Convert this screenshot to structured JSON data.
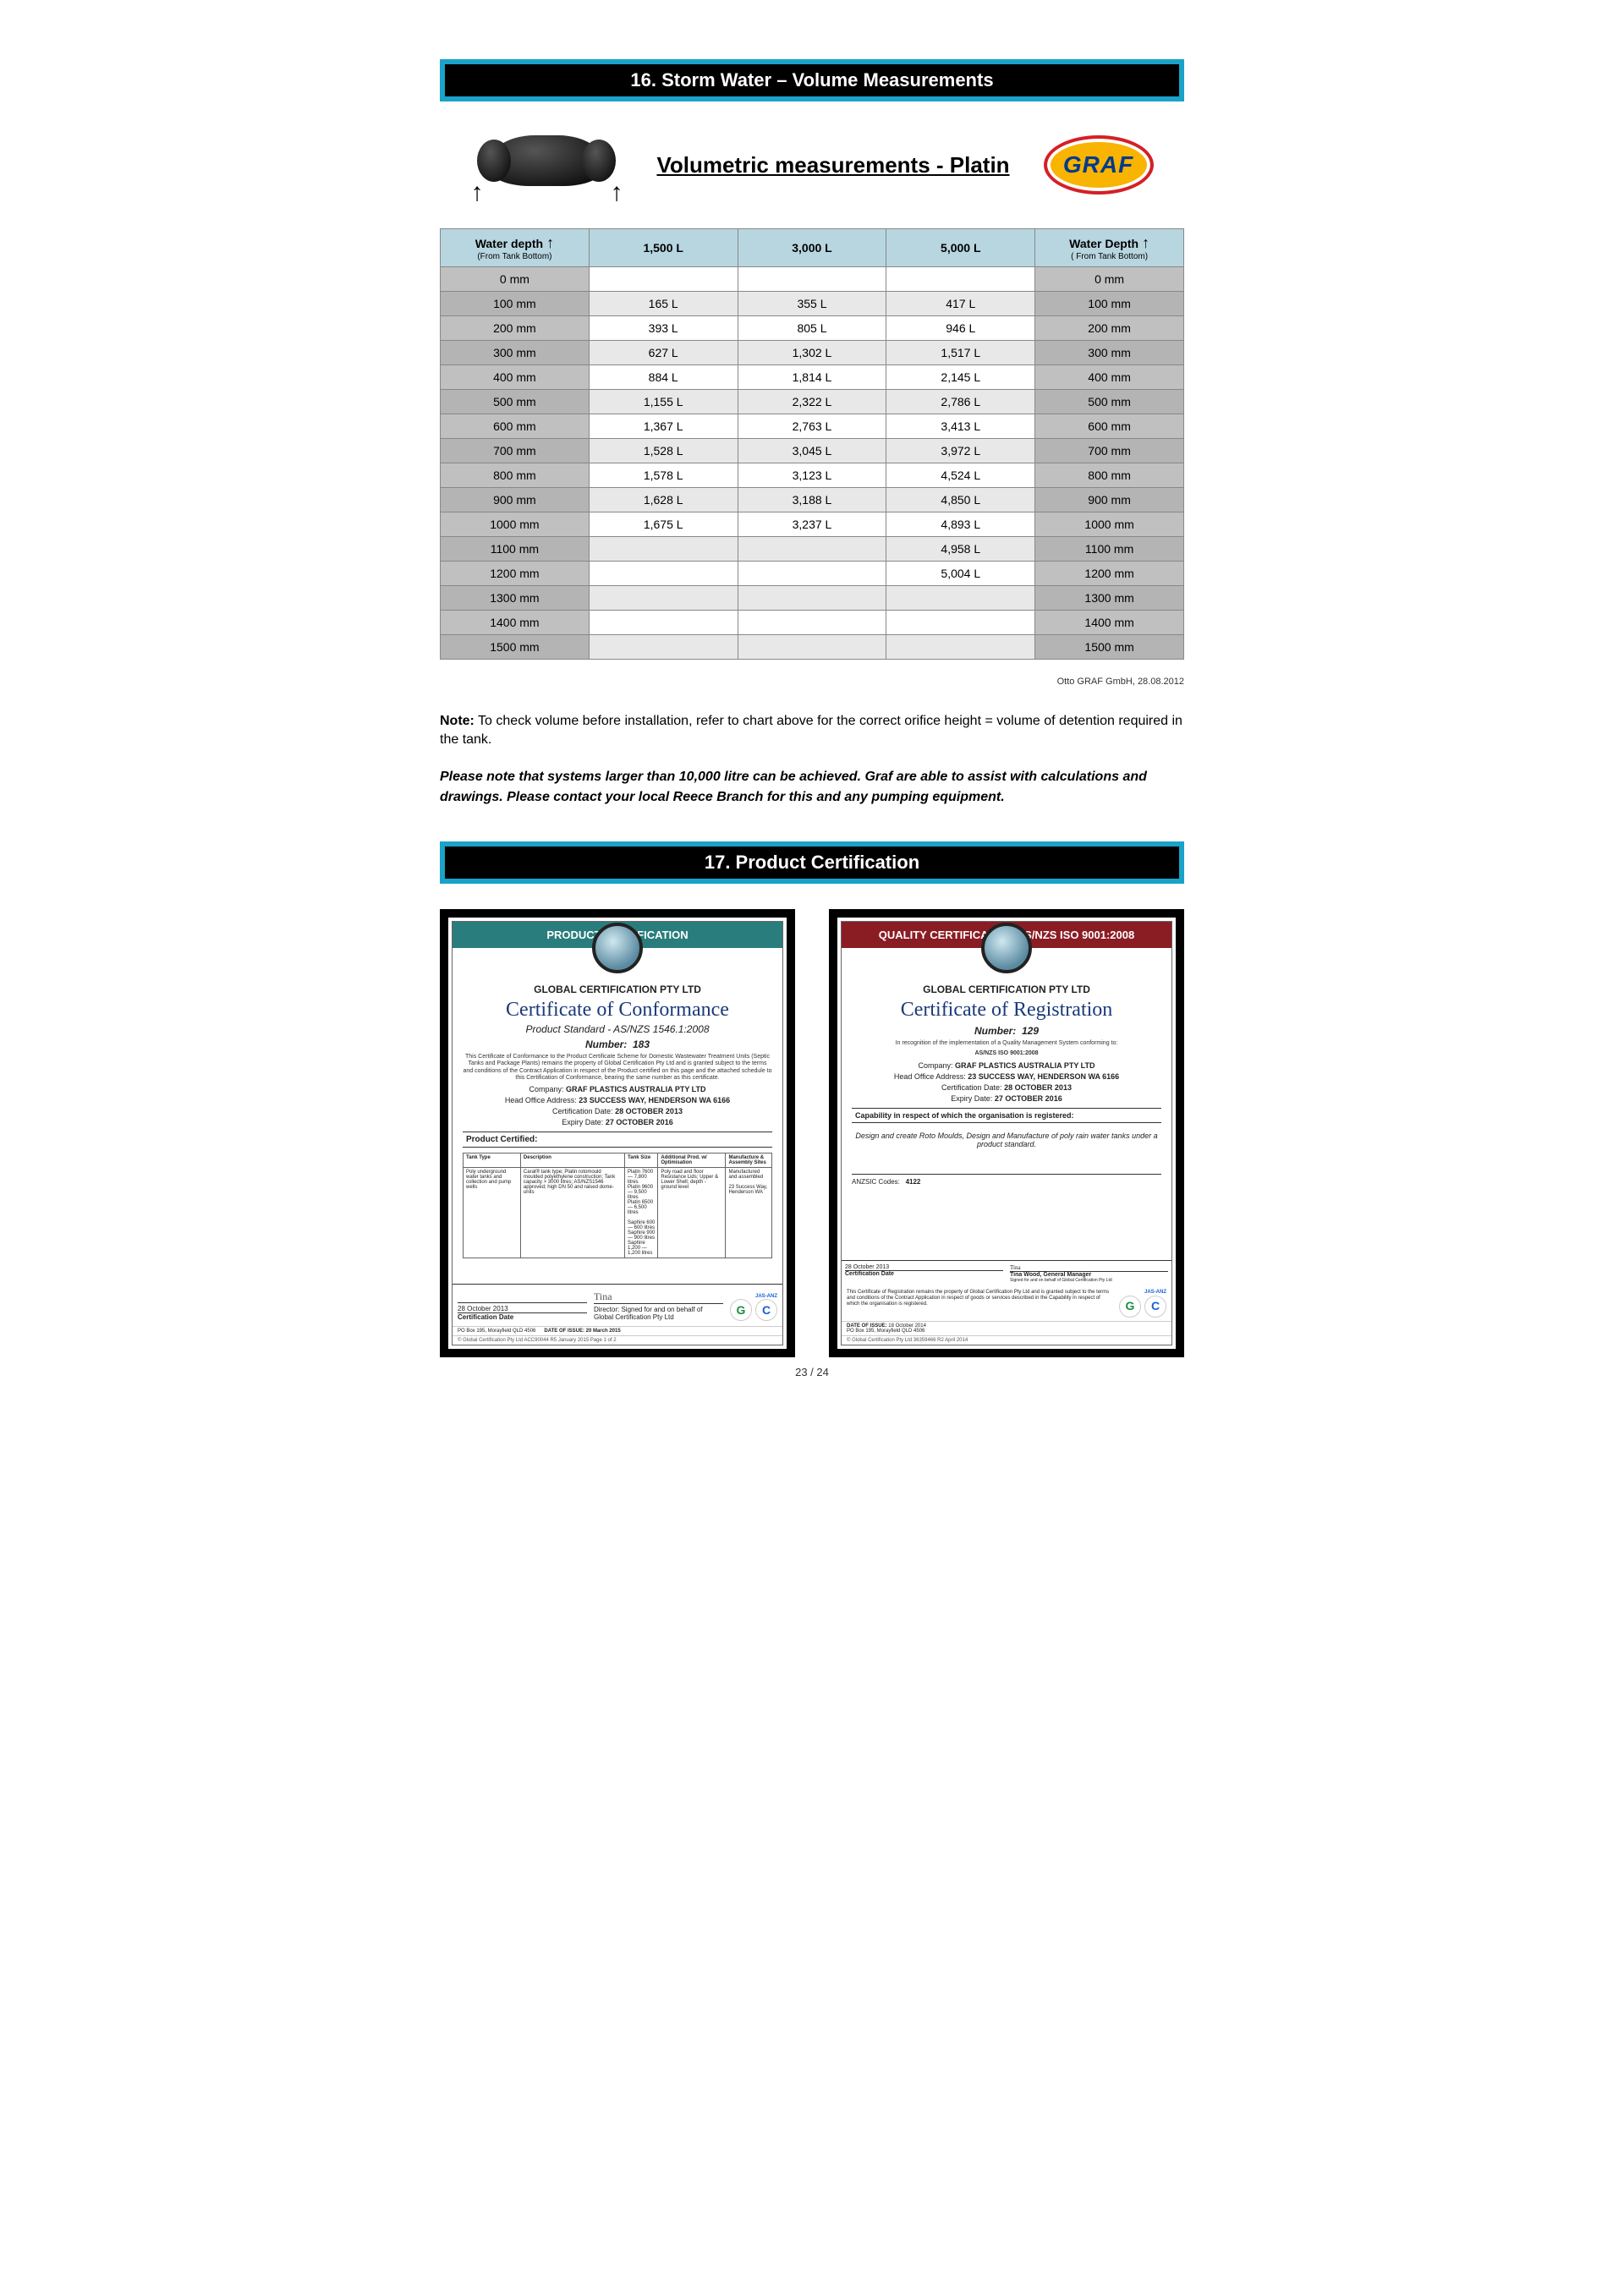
{
  "section16": {
    "bar_title": "16. Storm Water – Volume Measurements",
    "doc_title": "Volumetric measurements - Platin",
    "logo_text": "GRAF",
    "table": {
      "header_depth_left": "Water depth",
      "header_depth_left_sub": "(From Tank Bottom)",
      "header_depth_right": "Water Depth",
      "header_depth_right_sub": "( From Tank Bottom)",
      "arrow": "↑",
      "columns": [
        "1,500 L",
        "3,000 L",
        "5,000 L"
      ],
      "rows": [
        {
          "depth": "0 mm",
          "v": [
            "",
            "",
            ""
          ]
        },
        {
          "depth": "100 mm",
          "v": [
            "165 L",
            "355 L",
            "417 L"
          ]
        },
        {
          "depth": "200 mm",
          "v": [
            "393 L",
            "805 L",
            "946 L"
          ]
        },
        {
          "depth": "300 mm",
          "v": [
            "627 L",
            "1,302 L",
            "1,517 L"
          ]
        },
        {
          "depth": "400 mm",
          "v": [
            "884 L",
            "1,814 L",
            "2,145 L"
          ]
        },
        {
          "depth": "500 mm",
          "v": [
            "1,155 L",
            "2,322 L",
            "2,786 L"
          ]
        },
        {
          "depth": "600 mm",
          "v": [
            "1,367 L",
            "2,763 L",
            "3,413 L"
          ]
        },
        {
          "depth": "700 mm",
          "v": [
            "1,528 L",
            "3,045 L",
            "3,972 L"
          ]
        },
        {
          "depth": "800 mm",
          "v": [
            "1,578 L",
            "3,123 L",
            "4,524 L"
          ]
        },
        {
          "depth": "900 mm",
          "v": [
            "1,628 L",
            "3,188 L",
            "4,850 L"
          ]
        },
        {
          "depth": "1000 mm",
          "v": [
            "1,675 L",
            "3,237 L",
            "4,893 L"
          ]
        },
        {
          "depth": "1100 mm",
          "v": [
            "",
            "",
            "4,958 L"
          ]
        },
        {
          "depth": "1200 mm",
          "v": [
            "",
            "",
            "5,004 L"
          ]
        },
        {
          "depth": "1300 mm",
          "v": [
            "",
            "",
            ""
          ]
        },
        {
          "depth": "1400 mm",
          "v": [
            "",
            "",
            ""
          ]
        },
        {
          "depth": "1500 mm",
          "v": [
            "",
            "",
            ""
          ]
        }
      ],
      "header_bg": "#b8d6e0",
      "depth_bg": "#c0c0c0",
      "border_color": "#888888"
    },
    "attribution": "Otto GRAF GmbH, 28.08.2012",
    "note_label": "Note:",
    "note_text": " To check volume before installation, refer to chart above for the correct orifice height = volume of detention required in the tank.",
    "emphasis": "Please note that systems larger than 10,000 litre can be achieved. Graf are able to assist with calculations and drawings. Please contact your local Reece Branch for this and any pumping equipment."
  },
  "section17": {
    "bar_title": "17. Product Certification"
  },
  "cert1": {
    "banner": "PRODUCT CERTIFICATION",
    "org": "GLOBAL CERTIFICATION PTY LTD",
    "title": "Certificate of Conformance",
    "standard": "Product Standard - AS/NZS 1546.1:2008",
    "number_label": "Number:",
    "number": "183",
    "blurb": "This Certificate of Conformance to the Product Certificate Scheme for Domestic Wastewater Treatment Units (Septic Tanks and Package Plants) remains the property of Global Certification Pty Ltd and is granted subject to the terms and conditions of the Contract Application in respect of the Product certified on this page and the attached schedule to this Certification of Conformance, bearing the same number as this certificate.",
    "company_label": "Company:",
    "company": "GRAF PLASTICS AUSTRALIA PTY LTD",
    "addr_label": "Head Office Address:",
    "addr": "23 SUCCESS WAY, HENDERSON WA 6166",
    "certdate_label": "Certification Date:",
    "certdate": "28 OCTOBER 2013",
    "expiry_label": "Expiry Date:",
    "expiry": "27 OCTOBER 2016",
    "product_certified_label": "Product Certified:",
    "mini_headers": [
      "Tank Type",
      "Description",
      "Tank Size",
      "Additional Prod. w/ Optimisation",
      "Manufacture & Assembly Sites"
    ],
    "mini_row": [
      "Poly underground water tanks and collection and pump wells",
      "Carat® tank type; Platin rotomould moulded polyethylene construction; Tank capacity > 3000 litres; AS/NZS1546 approved; high DN 50 and raised dome-units",
      "Platin 7600 — 7,800 litres\nPlatin 9600 — 9,500 litres\nPlatin 6500 — 6,500 litres\n\nSaphire 600 — 600 litres\nSaphire 900 — 900 litres\nSaphire 1,200 — 1,200 litres",
      "Poly road and floor Resistance Lids; Upper & Lower Shell; depth - ground level",
      "Manufactured and assembled\n\n23 Success Way, Henderson WA"
    ],
    "footer_date": "28 October 2013",
    "footer_date_label": "Certification Date",
    "director_line": "Director: Signed for and on behalf of",
    "director_org": "Global Certification Pty Ltd",
    "jasanz": "JAS-ANZ",
    "po": "PO Box 195, Morayfield QLD 4506",
    "issue": "DATE OF ISSUE: 20 March 2015",
    "bottom": "© Global Certification Pty Ltd    ACC90044 R5 January 2015  Page 1 of 2"
  },
  "cert2": {
    "banner": "QUALITY CERTIFICATION AS/NZS ISO 9001:2008",
    "org": "GLOBAL CERTIFICATION PTY LTD",
    "title": "Certificate of Registration",
    "number_label": "Number:",
    "number": "129",
    "recog": "In recognition of the implementation of a Quality Management System conforming to:",
    "standard": "AS/NZS ISO 9001:2008",
    "company_label": "Company:",
    "company": "GRAF PLASTICS AUSTRALIA PTY LTD",
    "addr_label": "Head Office Address:",
    "addr": "23 SUCCESS WAY, HENDERSON WA 6166",
    "certdate_label": "Certification Date:",
    "certdate": "28 OCTOBER 2013",
    "expiry_label": "Expiry Date:",
    "expiry": "27 OCTOBER 2016",
    "capability_label": "Capability in respect of which the organisation is registered:",
    "capability": "Design and create Roto Moulds, Design and Manufacture of poly rain water tanks under a product standard.",
    "anzsic_label": "ANZSIC Codes:",
    "anzsic": "4122",
    "footer_date": "28 October 2013",
    "footer_date_label": "Certification Date",
    "signer": "Tina Wood, General Manager",
    "signer_sub": "Signed for and on behalf of Global Certification Pty Ltd",
    "disclaimer": "This Certificate of Registration remains the property of Global Certification Pty Ltd and is granted subject to the terms and conditions of the Contract Application in respect of goods or services described in the Capability in respect of which the organisation is registered.",
    "jasanz": "JAS-ANZ",
    "issue_label": "DATE OF ISSUE:",
    "issue": "18 October 2014",
    "po": "PO Box 195, Morayfield QLD 4506",
    "bottom": "© Global Certification Pty Ltd    36359466 R2 April 2014"
  },
  "page_number": "23 / 24",
  "colors": {
    "bar_border": "#1aa2c9",
    "bar_bg": "#000000",
    "graf_inner": "#f8b400",
    "graf_border": "#d42028",
    "graf_text": "#003a8c",
    "cert_teal": "#2a7d7d",
    "cert_maroon": "#8a1d24"
  }
}
